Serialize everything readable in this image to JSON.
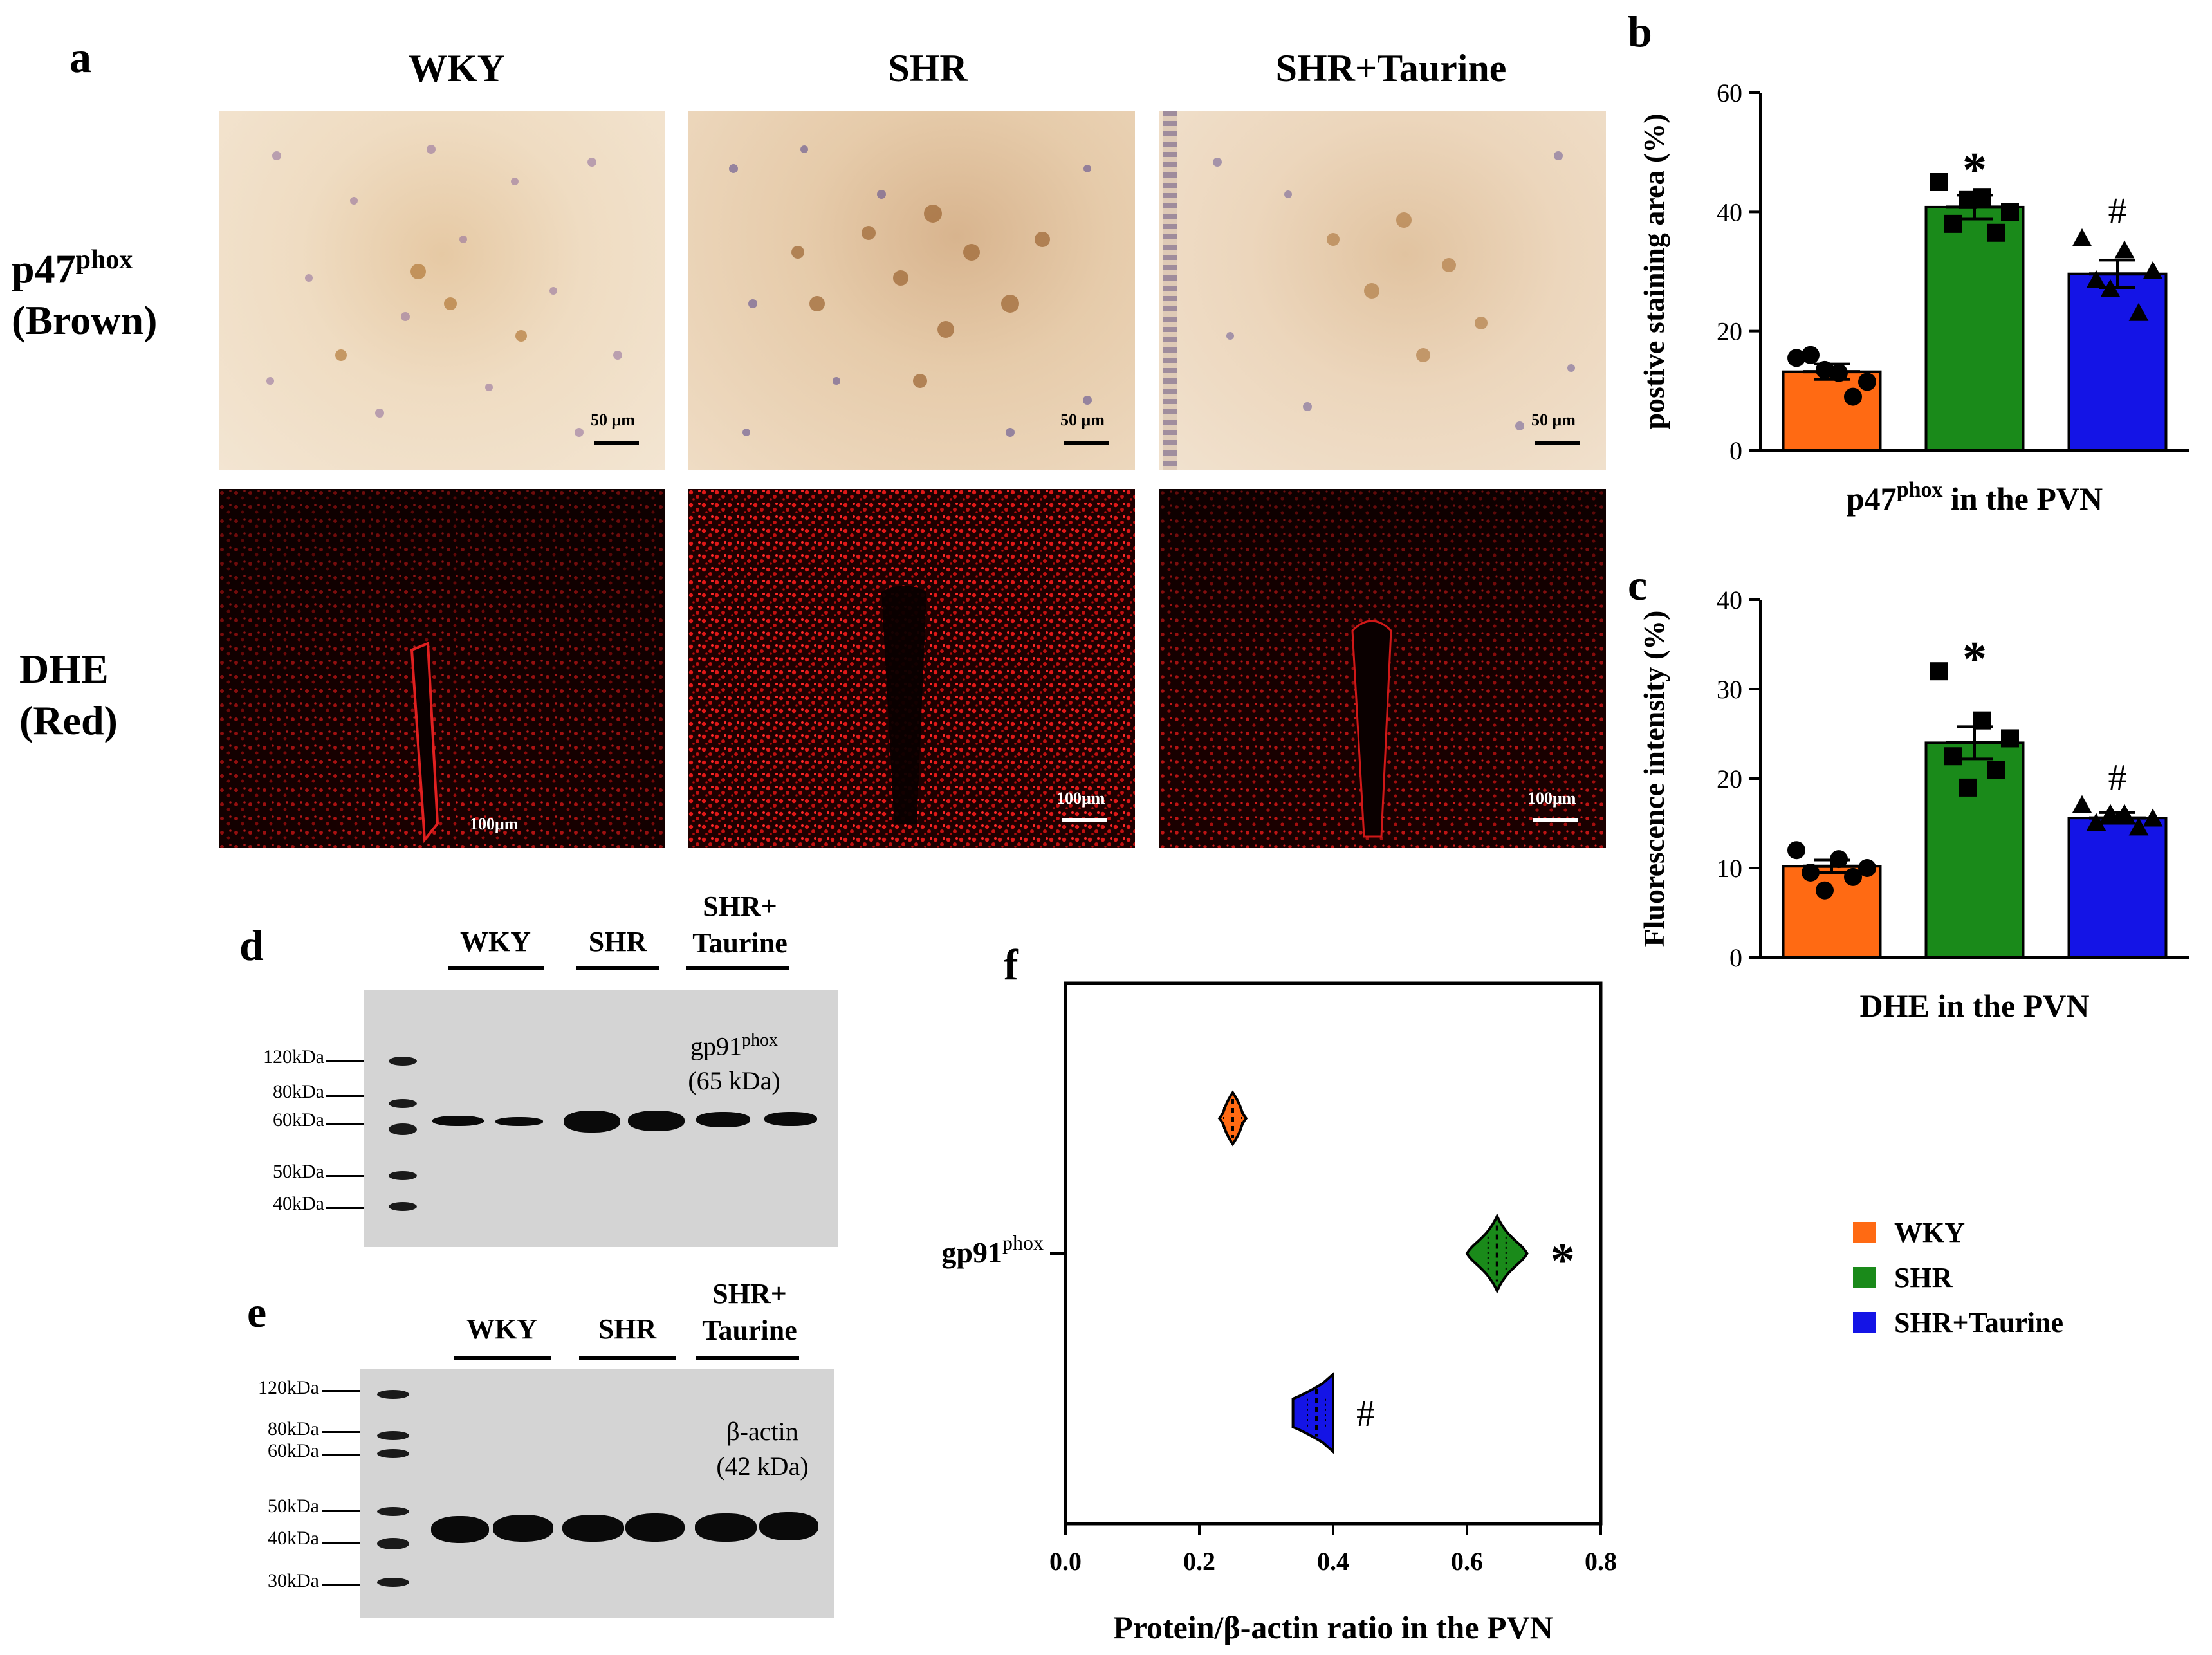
{
  "panels": {
    "a": "a",
    "b": "b",
    "c": "c",
    "d": "d",
    "e": "e",
    "f": "f"
  },
  "groups": [
    "WKY",
    "SHR",
    "SHR+Taurine"
  ],
  "colors": {
    "WKY": "#ff6a13",
    "SHR": "#1a8a1a",
    "SHR+Taurine": "#1414e6"
  },
  "micrographs": {
    "row1_label_main": "p47",
    "row1_label_sup": "phox",
    "row1_label_sub": "(Brown)",
    "row2_label_main": "DHE",
    "row2_label_sub": "(Red)",
    "scale_bf": [
      "50 μm",
      "50 μm",
      "50 μm"
    ],
    "scale_fl": [
      "100μm",
      "100μm",
      "100μm"
    ]
  },
  "western_d": {
    "lanes": [
      "WKY",
      "SHR",
      "SHR+",
      "Taurine"
    ],
    "markers": [
      "120kDa",
      "80kDa",
      "60kDa",
      "50kDa",
      "40kDa"
    ],
    "protein_main": "gp91",
    "protein_sup": "phox",
    "protein_size": "(65 kDa)"
  },
  "western_e": {
    "lanes": [
      "WKY",
      "SHR",
      "SHR+",
      "Taurine"
    ],
    "markers": [
      "120kDa",
      "80kDa",
      "60kDa",
      "50kDa",
      "40kDa",
      "30kDa"
    ],
    "protein_main": "β-actin",
    "protein_size": "(42 kDa)"
  },
  "legend": [
    "WKY",
    "SHR",
    "SHR+Taurine"
  ],
  "chart_data": [
    {
      "id": "b",
      "type": "bar",
      "categories": [
        "WKY",
        "SHR",
        "SHR+Taurine"
      ],
      "values": [
        13.2,
        40.8,
        29.6
      ],
      "sem": [
        1.3,
        2.0,
        2.3
      ],
      "points": [
        [
          15.5,
          13.0,
          11.5,
          16.0,
          9.0,
          13.5
        ],
        [
          45.0,
          42.5,
          40.0,
          38.0,
          36.5,
          42.0
        ],
        [
          35.5,
          33.5,
          30.0,
          28.5,
          23.0,
          27.0
        ]
      ],
      "markers": [
        "circle",
        "square",
        "triangle"
      ],
      "annotations": [
        "",
        "*",
        "#"
      ],
      "ylabel": "postive staining area (%)",
      "xlabel_main": "p47",
      "xlabel_sup": "phox",
      "xlabel_rest": " in the PVN",
      "ylim": [
        0,
        60
      ],
      "yticks": [
        0,
        20,
        40,
        60
      ]
    },
    {
      "id": "c",
      "type": "bar",
      "categories": [
        "WKY",
        "SHR",
        "SHR+Taurine"
      ],
      "values": [
        10.2,
        24.0,
        15.6
      ],
      "sem": [
        0.7,
        1.8,
        0.6
      ],
      "points": [
        [
          12.0,
          11.0,
          10.0,
          9.5,
          9.0,
          7.5
        ],
        [
          32.0,
          26.5,
          24.5,
          22.5,
          21.0,
          19.0
        ],
        [
          17.0,
          16.0,
          15.5,
          15.0,
          14.5,
          16.0
        ]
      ],
      "markers": [
        "circle",
        "square",
        "triangle"
      ],
      "annotations": [
        "",
        "*",
        "#"
      ],
      "ylabel": "Fluorescence intensity (%)",
      "xlabel": "DHE in the PVN",
      "ylim": [
        0,
        40
      ],
      "yticks": [
        0,
        10,
        20,
        30,
        40
      ]
    },
    {
      "id": "f",
      "type": "violin",
      "orientation": "horizontal",
      "category_main": "gp91",
      "category_sup": "phox",
      "series": [
        {
          "name": "WKY",
          "min": 0.23,
          "max": 0.27,
          "median": 0.25,
          "peak": 0.2
        },
        {
          "name": "SHR",
          "min": 0.6,
          "max": 0.69,
          "median": 0.645,
          "peak": 0.5
        },
        {
          "name": "SHR+Taurine",
          "min": 0.34,
          "max": 0.4,
          "median": 0.375,
          "peak": 0.35
        }
      ],
      "annotations": [
        "",
        "*",
        "#"
      ],
      "xlabel": "Protein/β-actin ratio in the PVN",
      "xlim": [
        0.0,
        0.8
      ],
      "xticks": [
        "0.0",
        "0.2",
        "0.4",
        "0.6",
        "0.8"
      ]
    }
  ]
}
